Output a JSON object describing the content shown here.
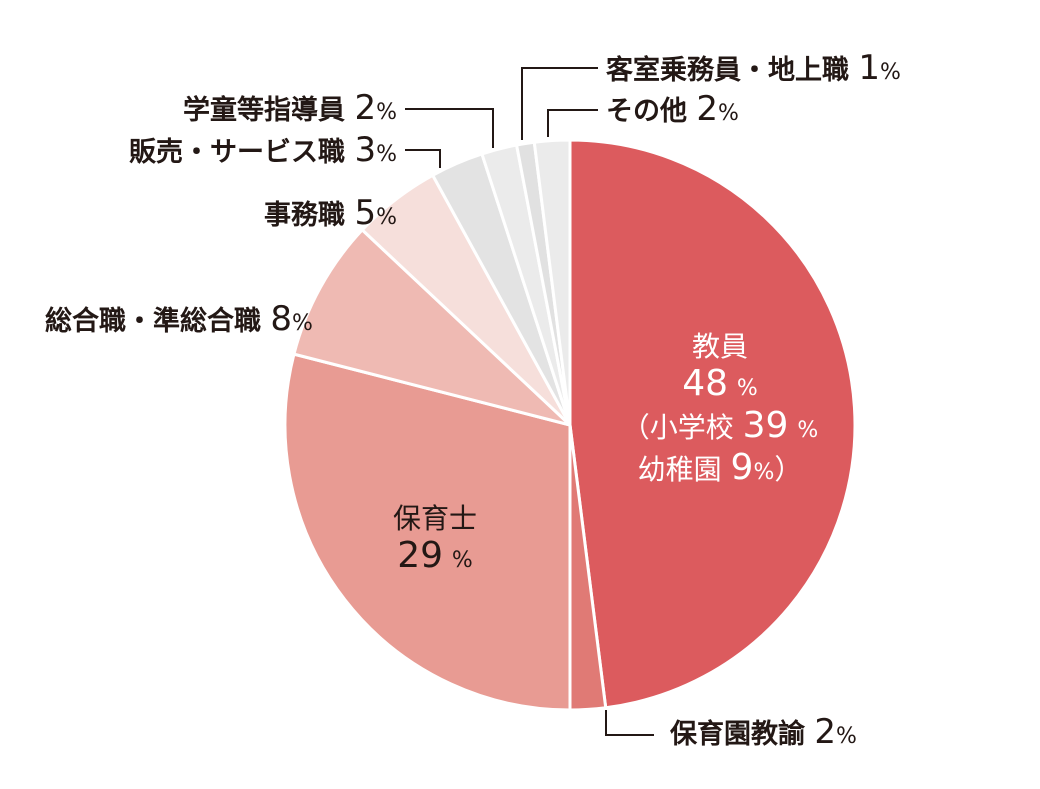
{
  "chart_data": {
    "type": "pie",
    "title": "",
    "start_angle": "12 o'clock, clockwise",
    "slices": [
      {
        "label": "教員",
        "value": 48,
        "color": "#dc5b5e",
        "breakdown": [
          {
            "label": "小学校",
            "value": 39
          },
          {
            "label": "幼稚園",
            "value": 9
          }
        ]
      },
      {
        "label": "保育園教諭",
        "value": 2,
        "color": "#e07a75"
      },
      {
        "label": "保育士",
        "value": 29,
        "color": "#e89b93"
      },
      {
        "label": "総合職・準総合職",
        "value": 8,
        "color": "#efbab3"
      },
      {
        "label": "事務職",
        "value": 5,
        "color": "#f6dfdb"
      },
      {
        "label": "販売・サービス職",
        "value": 3,
        "color": "#e3e3e3"
      },
      {
        "label": "学童等指導員",
        "value": 2,
        "color": "#ebebeb"
      },
      {
        "label": "客室乗務員・地上職",
        "value": 1,
        "color": "#e1e1e1"
      },
      {
        "label": "その他",
        "value": 2,
        "color": "#ebebeb"
      }
    ],
    "unit": "%"
  },
  "labels": {
    "teacher": {
      "name": "教員",
      "value": "48",
      "sub1_open": "（小学校",
      "sub1_value": "39",
      "sub2_name": "幼稚園",
      "sub2_value": "9",
      "sub2_close": "）"
    },
    "nursery_teacher": {
      "name": "保育園教諭",
      "value": "2"
    },
    "childcare": {
      "name": "保育士",
      "value": "29"
    },
    "career": {
      "name": "総合職・準総合職",
      "value": "8"
    },
    "office": {
      "name": "事務職",
      "value": "5"
    },
    "sales": {
      "name": "販売・サービス職",
      "value": "3"
    },
    "afterschool": {
      "name": "学童等指導員",
      "value": "2"
    },
    "cabin": {
      "name": "客室乗務員・地上職",
      "value": "1"
    },
    "other": {
      "name": "その他",
      "value": "2"
    },
    "pct": "%"
  }
}
